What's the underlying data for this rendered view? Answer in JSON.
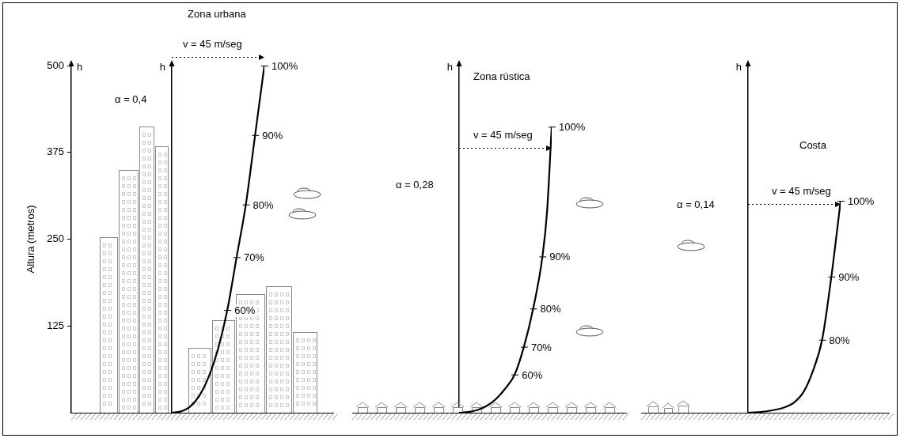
{
  "height_axis": {
    "label": "h",
    "title": "Altura (metros)",
    "ylim": [
      0,
      500
    ],
    "yticks": [
      125,
      250,
      375,
      500
    ]
  },
  "chart_data": [
    {
      "type": "line",
      "title": "Zona urbana",
      "y_label": "h",
      "x_label": "v = 45 m/seg",
      "annotations": [
        "α = 0,4"
      ],
      "x": [
        0,
        10,
        20,
        30,
        40,
        50,
        60,
        70,
        80,
        90,
        100
      ],
      "values": [
        0,
        2,
        9,
        25,
        52,
        92,
        148,
        224,
        300,
        400,
        500
      ],
      "point_labels": [
        {
          "text": "60%",
          "x": 60
        },
        {
          "text": "70%",
          "x": 70
        },
        {
          "text": "80%",
          "x": 80
        },
        {
          "text": "90%",
          "x": 90
        },
        {
          "text": "100%",
          "x": 100
        }
      ],
      "xlim": [
        0,
        100
      ],
      "ylim": [
        0,
        500
      ],
      "tick_labels": false,
      "grid": false,
      "color": "#000000"
    },
    {
      "type": "line",
      "title": "Zona rústica",
      "y_label": "h",
      "x_label": "v = 45 m/seg",
      "annotations": [
        "α = 0,28"
      ],
      "x": [
        0,
        10,
        20,
        30,
        40,
        50,
        60,
        70,
        80,
        90,
        95,
        100
      ],
      "values": [
        0,
        1,
        4,
        10,
        20,
        35,
        55,
        95,
        150,
        225,
        290,
        412
      ],
      "point_labels": [
        {
          "text": "60%",
          "x": 60
        },
        {
          "text": "70%",
          "x": 70
        },
        {
          "text": "80%",
          "x": 80
        },
        {
          "text": "90%",
          "x": 90
        },
        {
          "text": "100%",
          "x": 100
        }
      ],
      "xlim": [
        0,
        100
      ],
      "ylim": [
        0,
        500
      ],
      "tick_labels": false,
      "grid": false,
      "color": "#000000"
    },
    {
      "type": "line",
      "title": "Costa",
      "y_label": "h",
      "x_label": "v = 45 m/seg",
      "annotations": [
        "α = 0,14"
      ],
      "x": [
        0,
        20,
        40,
        50,
        60,
        70,
        80,
        90,
        100
      ],
      "values": [
        0,
        2,
        8,
        15,
        30,
        60,
        105,
        196,
        305
      ],
      "point_labels": [
        {
          "text": "80%",
          "x": 80
        },
        {
          "text": "90%",
          "x": 90
        },
        {
          "text": "100%",
          "x": 100
        }
      ],
      "xlim": [
        0,
        100
      ],
      "ylim": [
        0,
        500
      ],
      "tick_labels": false,
      "grid": false,
      "color": "#000000"
    }
  ]
}
